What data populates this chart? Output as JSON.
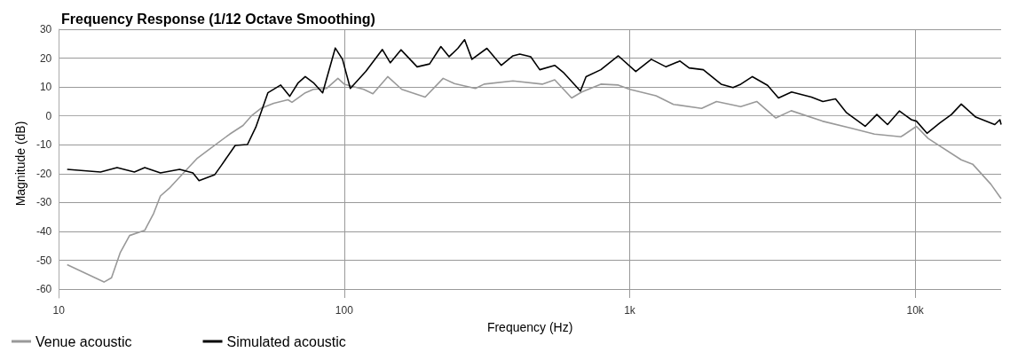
{
  "chart_data": {
    "type": "line",
    "title": "Frequency Response (1/12 Octave Smoothing)",
    "xlabel": "Frequency (Hz)",
    "ylabel": "Magnitude (dB)",
    "log": "x",
    "xlim": [
      10,
      20000
    ],
    "xticks": [
      10,
      100,
      {
        "value": 1000,
        "label": "1k"
      },
      {
        "value": 10000,
        "label": "10k"
      }
    ],
    "ylim": [
      -63,
      30
    ],
    "yticks": [
      -60,
      -50,
      -40,
      -30,
      -20,
      -10,
      0,
      10,
      20,
      30
    ],
    "grid": true,
    "legend": "bottom",
    "marker": "none",
    "line_style": "solid",
    "series": [
      {
        "name": "Venue acoustic",
        "color": "#999999",
        "x": [
          10.7,
          14.4,
          15.3,
          16.4,
          17.7,
          20,
          21.5,
          22.7,
          24.4,
          27.9,
          30.6,
          33.5,
          39.7,
          44.2,
          47.5,
          51,
          56.6,
          63.5,
          65.6,
          73,
          78,
          86.6,
          95,
          100,
          117,
          126,
          142,
          159,
          192,
          222,
          243,
          288,
          309,
          390,
          494,
          546,
          626,
          679,
          792,
          912,
          1000,
          1236,
          1423,
          1786,
          2014,
          2447,
          2785,
          3250,
          3680,
          4730,
          6000,
          7200,
          8920,
          10100,
          11100,
          14500,
          15900,
          18400,
          20000
        ],
        "values": [
          -51.5,
          -57.5,
          -56,
          -47.4,
          -41.4,
          -39.6,
          -33.7,
          -27.7,
          -25,
          -18.8,
          -14.6,
          -11.7,
          -6.3,
          -3.3,
          0.2,
          2.6,
          4.4,
          5.6,
          4.7,
          8,
          9.2,
          9.5,
          13,
          11,
          9.2,
          7.7,
          13.6,
          9.2,
          6.5,
          13,
          11.2,
          9.5,
          11,
          12.1,
          11,
          12.5,
          6.2,
          8.3,
          11,
          10.7,
          9.2,
          7,
          4,
          2.6,
          5,
          3.2,
          5,
          -0.7,
          1.8,
          -1.8,
          -4.3,
          -6.3,
          -7.2,
          -3.6,
          -7.8,
          -15.2,
          -16.7,
          -23.6,
          -28.6
        ]
      },
      {
        "name": "Simulated acoustic",
        "color": "#000000",
        "x": [
          10.7,
          14,
          16,
          18.4,
          20,
          22.7,
          26.5,
          29.5,
          31,
          35.2,
          37,
          41.5,
          45.8,
          49,
          54,
          59.9,
          64.4,
          69,
          73,
          78,
          84,
          93,
          98.6,
          105,
          119,
          136,
          145,
          158,
          180,
          199,
          218,
          233,
          250,
          264,
          280,
          316,
          355,
          390,
          412,
          450,
          484,
          546,
          585,
          672,
          703,
          792,
          912,
          1050,
          1190,
          1340,
          1500,
          1615,
          1810,
          2090,
          2300,
          2450,
          2690,
          3040,
          3320,
          3690,
          4330,
          4750,
          5260,
          5750,
          6680,
          7340,
          8000,
          8800,
          9700,
          10100,
          11000,
          12200,
          13400,
          14500,
          16300,
          19000,
          19800,
          20000
        ],
        "values": [
          -18.5,
          -19.4,
          -17.9,
          -19.4,
          -17.9,
          -19.7,
          -18.5,
          -19.7,
          -22.4,
          -20.3,
          -17.3,
          -10.2,
          -9.9,
          -3.9,
          8,
          10.7,
          6.8,
          11.5,
          13.6,
          11.5,
          8,
          23.5,
          19.6,
          9.5,
          15.4,
          23,
          18.4,
          22.9,
          17,
          18,
          24,
          20.5,
          23.4,
          26.4,
          19.6,
          23.4,
          17.5,
          20.8,
          21.4,
          20.5,
          16,
          17.5,
          15.1,
          8.6,
          13.6,
          16,
          20.8,
          15.4,
          19.6,
          17,
          19,
          16.6,
          16,
          11,
          9.8,
          11,
          13.6,
          10.6,
          6.2,
          8.3,
          6.5,
          5,
          5.9,
          1.1,
          -3.6,
          0.5,
          -3,
          1.7,
          -1.3,
          -1.8,
          -6,
          -2.4,
          0.5,
          4.1,
          -0.4,
          -3,
          -1.3,
          -3
        ]
      }
    ]
  }
}
